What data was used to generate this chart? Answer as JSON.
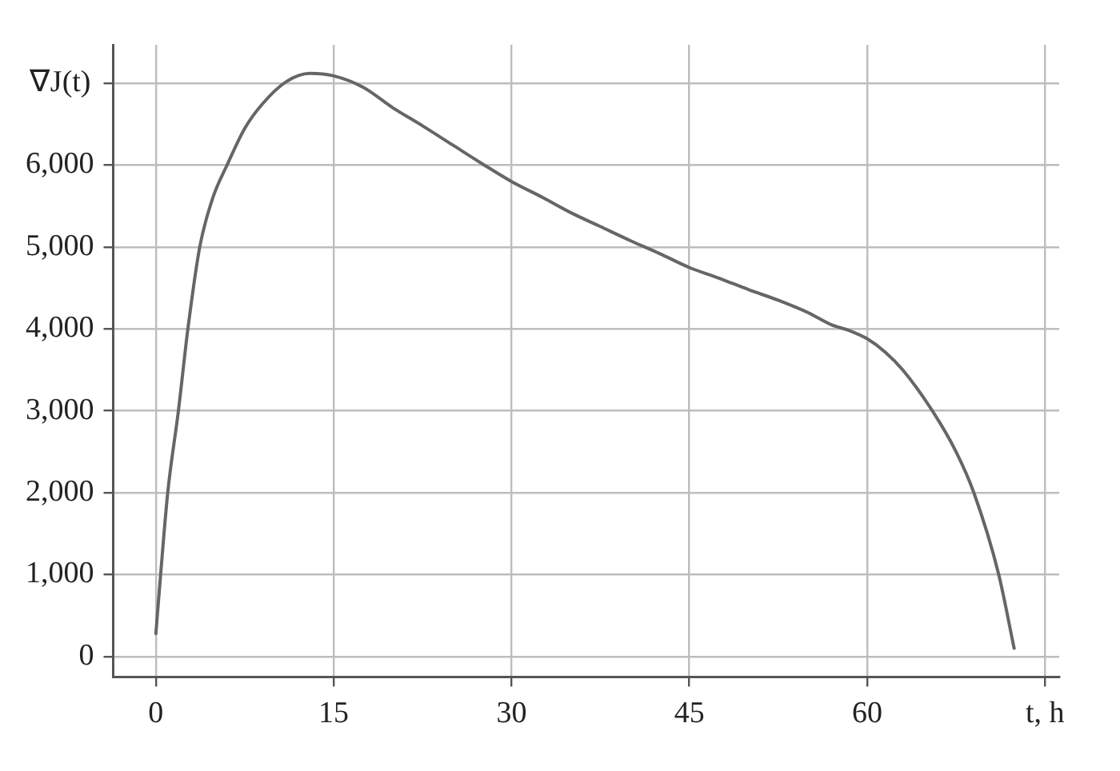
{
  "chart_data": {
    "type": "line",
    "ylabel": "∇J(t)",
    "xlabel": "t, h",
    "xlim": [
      -3.6,
      76.2
    ],
    "ylim": [
      -250,
      7470
    ],
    "xticks": [
      0,
      15,
      30,
      45,
      60,
      {
        "value": 75,
        "label": null
      }
    ],
    "yticks": [
      0,
      {
        "value": 1000,
        "label": "1,000"
      },
      {
        "value": 2000,
        "label": "2,000"
      },
      {
        "value": 3000,
        "label": "3,000"
      },
      {
        "value": 4000,
        "label": "4,000"
      },
      {
        "value": 5000,
        "label": "5,000"
      },
      {
        "value": 6000,
        "label": "6,000"
      },
      {
        "value": 7000,
        "label": null
      }
    ],
    "grid": true,
    "marker": "none",
    "line_style": "solid",
    "series": [
      {
        "color": "#666666",
        "x": [
          0,
          0.4,
          1,
          1.9,
          2.7,
          3.7,
          4.8,
          6,
          7.5,
          9,
          11,
          13,
          15,
          17.5,
          20,
          22.5,
          25,
          27.5,
          30,
          32.7,
          35,
          37.5,
          40,
          42.5,
          45,
          47.5,
          50,
          52.5,
          55,
          57,
          58.5,
          60,
          61.5,
          63,
          65.5,
          67.5,
          69,
          71.1,
          72.4
        ],
        "values": [
          280,
          1000,
          2000,
          3000,
          4000,
          5000,
          5600,
          6000,
          6450,
          6750,
          7020,
          7120,
          7090,
          6950,
          6700,
          6480,
          6250,
          6020,
          5800,
          5600,
          5420,
          5250,
          5080,
          4920,
          4750,
          4620,
          4480,
          4350,
          4200,
          4050,
          3980,
          3880,
          3720,
          3500,
          3000,
          2500,
          2000,
          1000,
          100
        ]
      }
    ]
  }
}
